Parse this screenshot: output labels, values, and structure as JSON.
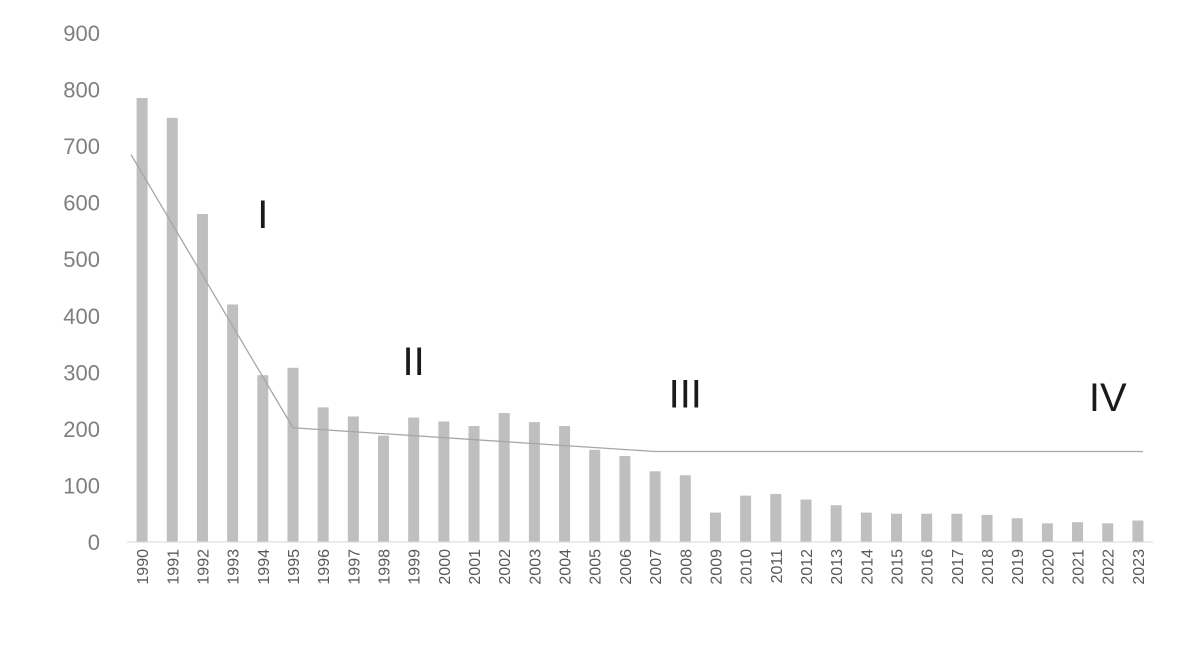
{
  "chart_data": {
    "type": "bar",
    "title": "",
    "xlabel": "",
    "ylabel": "",
    "ylim": [
      0,
      900
    ],
    "yticks": [
      0,
      100,
      200,
      300,
      400,
      500,
      600,
      700,
      800,
      900
    ],
    "grid": false,
    "legend": "none",
    "categories": [
      "1990",
      "1991",
      "1992",
      "1993",
      "1994",
      "1995",
      "1996",
      "1997",
      "1998",
      "1999",
      "2000",
      "2001",
      "2002",
      "2003",
      "2004",
      "2005",
      "2006",
      "2007",
      "2008",
      "2009",
      "2010",
      "2011",
      "2012",
      "2013",
      "2014",
      "2015",
      "2016",
      "2017",
      "2018",
      "2019",
      "2020",
      "2021",
      "2022",
      "2023"
    ],
    "series": [
      {
        "values": [
          785,
          750,
          580,
          420,
          295,
          308,
          238,
          222,
          188,
          220,
          213,
          205,
          228,
          212,
          205,
          163,
          152,
          125,
          118,
          52,
          82,
          85,
          75,
          65,
          52,
          50,
          50,
          50,
          48,
          42,
          33,
          35,
          33,
          38
        ],
        "color": "#bfbfbf"
      }
    ],
    "trend_line": {
      "color": "#a6a6a6",
      "points": [
        {
          "x": "1990",
          "y": 685
        },
        {
          "x": "1995",
          "y": 202
        },
        {
          "x": "2007",
          "y": 160
        },
        {
          "x": "2023",
          "y": 160
        }
      ]
    },
    "annotations": [
      {
        "text": "I",
        "x": "1994",
        "y": 555
      },
      {
        "text": "II",
        "x": "1999",
        "y": 295
      },
      {
        "text": "III",
        "x": "2008",
        "y": 238
      },
      {
        "text": "IV",
        "x": "2022",
        "y": 232
      }
    ]
  }
}
